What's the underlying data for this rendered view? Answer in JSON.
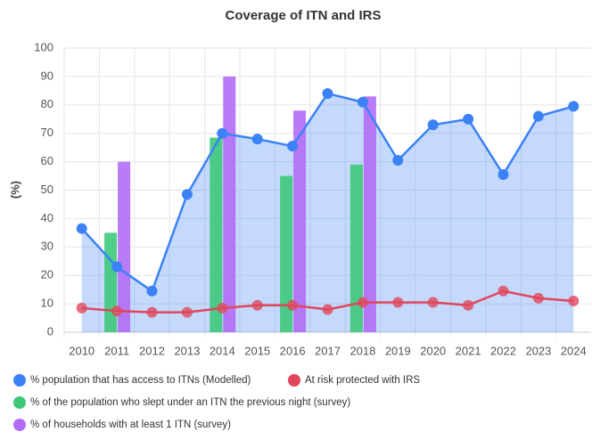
{
  "chart_data": {
    "type": "combo",
    "title": "Coverage of ITN and IRS",
    "y_label": "(%)",
    "categories": [
      "2010",
      "2011",
      "2012",
      "2013",
      "2014",
      "2015",
      "2016",
      "2017",
      "2018",
      "2019",
      "2020",
      "2021",
      "2022",
      "2023",
      "2024"
    ],
    "series": [
      {
        "name": "% population that has access to ITNs (Modelled)",
        "type": "line",
        "fill": true,
        "color": "#3b82f6",
        "values": [
          36.5,
          23,
          14.5,
          48.5,
          70,
          68,
          65.5,
          84,
          81,
          60.5,
          73,
          75,
          55.5,
          76,
          79.5
        ]
      },
      {
        "name": "At risk protected with IRS",
        "type": "line",
        "fill": false,
        "color": "#e0475b",
        "values": [
          8.5,
          7.5,
          7,
          7,
          8.5,
          9.5,
          9.5,
          8,
          10.5,
          10.5,
          10.5,
          9.5,
          14.5,
          12,
          11
        ]
      },
      {
        "name": "% of the population who slept under an ITN the previous night (survey)",
        "type": "bar",
        "color": "#3ec97a",
        "values": [
          null,
          35,
          null,
          null,
          68.5,
          null,
          55,
          null,
          59,
          null,
          null,
          null,
          null,
          null,
          null
        ]
      },
      {
        "name": "% of households with at least 1 ITN (survey)",
        "type": "bar",
        "color": "#b26df5",
        "values": [
          null,
          60,
          null,
          null,
          90,
          null,
          78,
          null,
          83,
          null,
          null,
          null,
          null,
          null,
          null
        ]
      }
    ],
    "ylim": [
      0,
      100
    ],
    "yticks": [
      0,
      10,
      20,
      30,
      40,
      50,
      60,
      70,
      80,
      90,
      100
    ],
    "grid": true
  }
}
